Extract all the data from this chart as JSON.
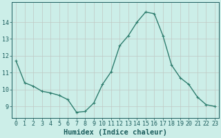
{
  "x": [
    0,
    1,
    2,
    3,
    4,
    5,
    6,
    7,
    8,
    9,
    10,
    11,
    12,
    13,
    14,
    15,
    16,
    17,
    18,
    19,
    20,
    21,
    22,
    23
  ],
  "y": [
    11.7,
    10.4,
    10.2,
    9.9,
    9.8,
    9.65,
    9.4,
    8.65,
    8.7,
    9.2,
    10.3,
    11.05,
    12.6,
    13.2,
    14.0,
    14.6,
    14.5,
    13.2,
    11.45,
    10.7,
    10.3,
    9.55,
    9.1,
    9.0
  ],
  "line_color": "#2e7d6e",
  "marker": "+",
  "marker_size": 3.5,
  "marker_lw": 0.8,
  "bg_color": "#cceee8",
  "grid_color": "#c0c8c4",
  "xlabel": "Humidex (Indice chaleur)",
  "xlabel_color": "#1a5c5c",
  "tick_color": "#1a5c5c",
  "spine_color": "#1a5c5c",
  "xlim": [
    -0.5,
    23.5
  ],
  "ylim": [
    8.3,
    15.2
  ],
  "yticks": [
    9,
    10,
    11,
    12,
    13,
    14
  ],
  "xticks": [
    0,
    1,
    2,
    3,
    4,
    5,
    6,
    7,
    8,
    9,
    10,
    11,
    12,
    13,
    14,
    15,
    16,
    17,
    18,
    19,
    20,
    21,
    22,
    23
  ],
  "grid_lw": 0.5,
  "line_width": 1.0,
  "font_size": 6.0,
  "xlabel_fontsize": 7.5
}
